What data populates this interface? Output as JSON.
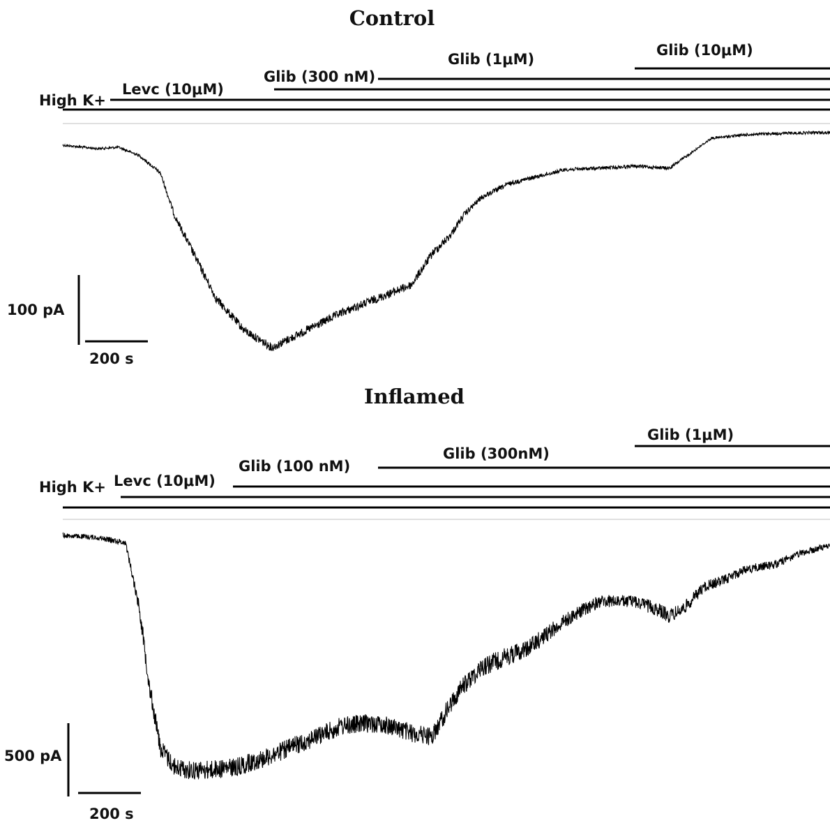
{
  "chart_data": [
    {
      "type": "line",
      "title": "Control",
      "baseline_label": "High K+",
      "application_bars": [
        {
          "label": "Levc (10μM)"
        },
        {
          "label": "Glib (300 nM)"
        },
        {
          "label": "Glib (1μM)"
        },
        {
          "label": "Glib (10μM)"
        }
      ],
      "scale_bar": {
        "current_label": "100 pA",
        "time_label": "200 s",
        "current_pA": 100,
        "time_s": 200
      },
      "x_unit": "s",
      "y_unit": "pA",
      "series": [
        {
          "x": [
            0,
            100,
            160,
            220,
            280,
            320,
            380,
            440,
            520,
            600,
            700,
            800,
            900,
            1000,
            1060,
            1110,
            1150,
            1200,
            1280,
            1360,
            1440,
            1540,
            1640,
            1740,
            1860,
            1960,
            2060,
            2150,
            2200
          ],
          "values": [
            0,
            -5,
            -3,
            -15,
            -40,
            -100,
            -160,
            -220,
            -265,
            -290,
            -265,
            -240,
            -220,
            -200,
            -155,
            -130,
            -100,
            -75,
            -55,
            -45,
            -35,
            -33,
            -30,
            -33,
            10,
            15,
            17,
            18,
            18
          ]
        }
      ]
    },
    {
      "type": "line",
      "title": "Inflamed",
      "baseline_label": "High K+",
      "application_bars": [
        {
          "label": "Levc (10μM)"
        },
        {
          "label": "Glib (100 nM)"
        },
        {
          "label": "Glib (300nM)"
        },
        {
          "label": "Glib (1μM)"
        }
      ],
      "scale_bar": {
        "current_label": "500 pA",
        "time_label": "200 s",
        "current_pA": 500,
        "time_s": 200
      },
      "x_unit": "s",
      "y_unit": "pA",
      "series": [
        {
          "x": [
            0,
            100,
            180,
            220,
            250,
            280,
            320,
            360,
            420,
            500,
            600,
            700,
            800,
            880,
            940,
            1000,
            1060,
            1100,
            1140,
            1200,
            1280,
            1340,
            1400,
            1460,
            1540,
            1640,
            1700,
            1740,
            1780,
            1840,
            1900,
            1960,
            2040,
            2120,
            2200
          ],
          "values": [
            0,
            -15,
            -50,
            -500,
            -1050,
            -1450,
            -1580,
            -1600,
            -1600,
            -1580,
            -1500,
            -1400,
            -1300,
            -1280,
            -1300,
            -1350,
            -1370,
            -1200,
            -1050,
            -900,
            -820,
            -760,
            -650,
            -550,
            -450,
            -450,
            -500,
            -550,
            -500,
            -350,
            -300,
            -230,
            -200,
            -120,
            -70
          ]
        }
      ]
    }
  ]
}
